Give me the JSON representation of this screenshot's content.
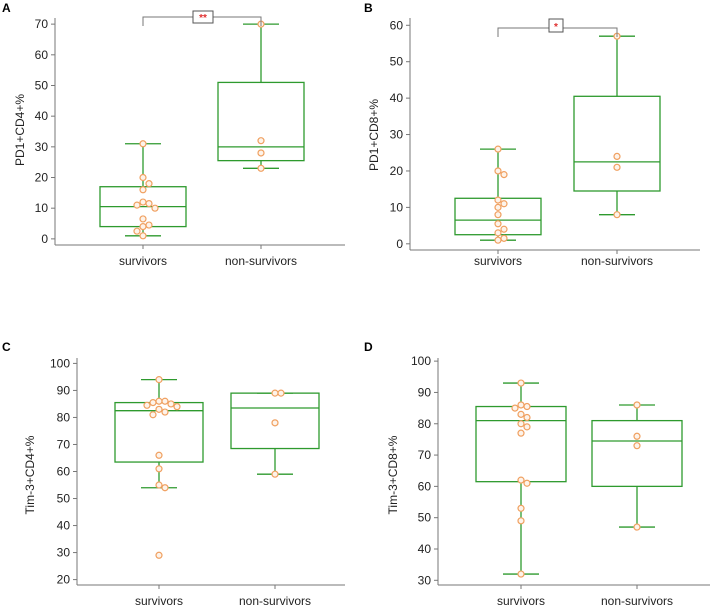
{
  "colors": {
    "box": "#2e9a2e",
    "point_stroke": "#f0a060",
    "point_fill": "#fdf3ea",
    "axis": "#777777",
    "text": "#222222",
    "sig_text": "#e03030"
  },
  "chart_data": [
    {
      "type": "box",
      "panel": "A",
      "title": "",
      "xlabel": "",
      "ylabel": "PD1+CD4+%",
      "ylim": [
        -2,
        72
      ],
      "yticks": [
        0,
        10,
        20,
        30,
        40,
        50,
        60,
        70
      ],
      "categories": [
        "survivors",
        "non-survivors"
      ],
      "series": [
        {
          "name": "survivors",
          "whisker_low": 1,
          "q1": 4,
          "median": 10.5,
          "q3": 17,
          "whisker_high": 31,
          "points": [
            31,
            20,
            18,
            16,
            12,
            11.5,
            11,
            10,
            6.5,
            4.5,
            4,
            2.5,
            1
          ]
        },
        {
          "name": "non-survivors",
          "whisker_low": 23,
          "q1": 25.5,
          "median": 30,
          "q3": 51,
          "whisker_high": 70,
          "points": [
            70,
            32,
            28,
            23
          ]
        }
      ],
      "significance": "**"
    },
    {
      "type": "box",
      "panel": "B",
      "title": "",
      "xlabel": "",
      "ylabel": "PD1+CD8+%",
      "ylim": [
        -1.7,
        62
      ],
      "yticks": [
        0,
        10,
        20,
        30,
        40,
        50,
        60
      ],
      "categories": [
        "survivors",
        "non-survivors"
      ],
      "series": [
        {
          "name": "survivors",
          "whisker_low": 1,
          "q1": 2.5,
          "median": 6.5,
          "q3": 12.5,
          "whisker_high": 26,
          "points": [
            26,
            20,
            19,
            12,
            11,
            10,
            8,
            5.5,
            4,
            3,
            1.5,
            1
          ]
        },
        {
          "name": "non-survivors",
          "whisker_low": 8,
          "q1": 14.5,
          "median": 22.5,
          "q3": 40.5,
          "whisker_high": 57,
          "points": [
            57,
            24,
            21,
            8
          ]
        }
      ],
      "significance": "*"
    },
    {
      "type": "box",
      "panel": "C",
      "title": "",
      "xlabel": "",
      "ylabel": "Tim-3+CD4+%",
      "ylim": [
        18,
        102
      ],
      "yticks": [
        20,
        30,
        40,
        50,
        60,
        70,
        80,
        90,
        100
      ],
      "categories": [
        "survivors",
        "non-survivors"
      ],
      "series": [
        {
          "name": "survivors",
          "whisker_low": 54,
          "q1": 63.5,
          "median": 82.5,
          "q3": 85.5,
          "whisker_high": 94,
          "points": [
            94,
            86,
            86,
            85.5,
            85,
            84.5,
            84,
            83,
            82,
            81,
            66,
            61,
            55,
            54,
            29
          ]
        },
        {
          "name": "non-survivors",
          "whisker_low": 59,
          "q1": 68.5,
          "median": 83.5,
          "q3": 89,
          "whisker_high": 89,
          "points": [
            89,
            89,
            78,
            59
          ]
        }
      ],
      "significance": ""
    },
    {
      "type": "box",
      "panel": "D",
      "title": "",
      "xlabel": "",
      "ylabel": "Tim-3+CD8+%",
      "ylim": [
        28.5,
        101
      ],
      "yticks": [
        30,
        40,
        50,
        60,
        70,
        80,
        90,
        100
      ],
      "categories": [
        "survivors",
        "non-survivors"
      ],
      "series": [
        {
          "name": "survivors",
          "whisker_low": 32,
          "q1": 61.5,
          "median": 81,
          "q3": 85.5,
          "whisker_high": 93,
          "points": [
            93,
            86,
            85.5,
            85,
            83,
            82,
            80,
            79,
            77,
            62,
            61,
            53,
            49,
            32
          ]
        },
        {
          "name": "non-survivors",
          "whisker_low": 47,
          "q1": 60,
          "median": 74.5,
          "q3": 81,
          "whisker_high": 86,
          "points": [
            86,
            76,
            73,
            47
          ]
        }
      ],
      "significance": ""
    }
  ]
}
